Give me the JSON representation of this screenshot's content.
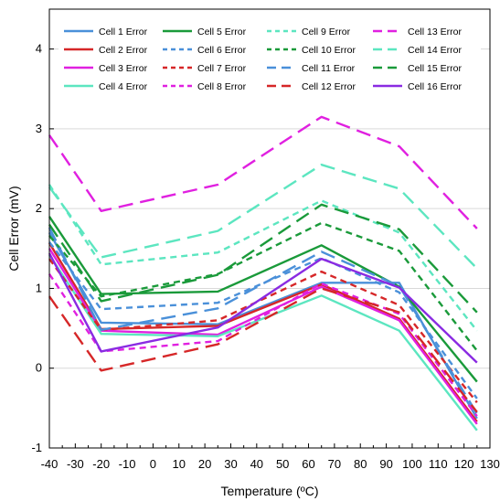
{
  "chart_data": {
    "type": "line",
    "xlabel": "Temperature (ºC)",
    "ylabel": "Cell Error (mV)",
    "xlim": [
      -40,
      130
    ],
    "ylim": [
      -1,
      4.5
    ],
    "x_ticks": [
      -40,
      -30,
      -20,
      -10,
      0,
      10,
      20,
      30,
      40,
      50,
      60,
      70,
      80,
      90,
      100,
      110,
      120,
      130
    ],
    "y_ticks": [
      -1,
      0,
      1,
      2,
      3,
      4
    ],
    "grid": "horizontal",
    "legend_position": "top",
    "x": [
      -40,
      -20,
      25,
      65,
      95,
      125
    ],
    "series": [
      {
        "name": "Cell 1 Error",
        "color": "#4a90d9",
        "dash": "solid",
        "values": [
          1.7,
          0.57,
          0.55,
          1.07,
          1.07,
          -0.63
        ]
      },
      {
        "name": "Cell 2 Error",
        "color": "#d62728",
        "dash": "solid",
        "values": [
          1.57,
          0.49,
          0.53,
          1.05,
          0.62,
          -0.67
        ]
      },
      {
        "name": "Cell 3 Error",
        "color": "#e020e0",
        "dash": "solid",
        "values": [
          1.5,
          0.47,
          0.42,
          1.02,
          0.6,
          -0.7
        ]
      },
      {
        "name": "Cell 4 Error",
        "color": "#5ce6c0",
        "dash": "solid",
        "values": [
          1.42,
          0.43,
          0.4,
          0.91,
          0.47,
          -0.78
        ]
      },
      {
        "name": "Cell 5 Error",
        "color": "#1a9a3a",
        "dash": "solid",
        "values": [
          1.9,
          0.93,
          0.96,
          1.54,
          1.02,
          -0.17
        ]
      },
      {
        "name": "Cell 6 Error",
        "color": "#4a90d9",
        "dash": "dash",
        "values": [
          1.58,
          0.74,
          0.82,
          1.38,
          0.95,
          -0.38
        ]
      },
      {
        "name": "Cell 7 Error",
        "color": "#d62728",
        "dash": "dash",
        "values": [
          1.37,
          0.48,
          0.6,
          1.21,
          0.79,
          -0.43
        ]
      },
      {
        "name": "Cell 8 Error",
        "color": "#e020e0",
        "dash": "dash",
        "values": [
          1.18,
          0.21,
          0.34,
          1.06,
          0.68,
          -0.6
        ]
      },
      {
        "name": "Cell 9 Error",
        "color": "#5ce6c0",
        "dash": "dash",
        "values": [
          2.3,
          1.3,
          1.45,
          2.1,
          1.7,
          0.47
        ]
      },
      {
        "name": "Cell 10 Error",
        "color": "#1a9a3a",
        "dash": "dash",
        "values": [
          1.66,
          0.9,
          1.18,
          1.82,
          1.47,
          0.22
        ]
      },
      {
        "name": "Cell 11 Error",
        "color": "#4a90d9",
        "dash": "longdash",
        "values": [
          1.76,
          0.48,
          0.75,
          1.46,
          1.03,
          -0.57
        ]
      },
      {
        "name": "Cell 12 Error",
        "color": "#d62728",
        "dash": "longdash",
        "values": [
          0.9,
          -0.03,
          0.3,
          1.0,
          0.7,
          -0.55
        ]
      },
      {
        "name": "Cell 13 Error",
        "color": "#e020e0",
        "dash": "longdash",
        "values": [
          2.92,
          1.97,
          2.3,
          3.15,
          2.78,
          1.75
        ]
      },
      {
        "name": "Cell 14 Error",
        "color": "#5ce6c0",
        "dash": "longdash",
        "values": [
          2.27,
          1.39,
          1.72,
          2.55,
          2.25,
          1.25
        ]
      },
      {
        "name": "Cell 15 Error",
        "color": "#1a9a3a",
        "dash": "longdash",
        "values": [
          1.8,
          0.84,
          1.17,
          2.05,
          1.74,
          0.7
        ]
      },
      {
        "name": "Cell 16 Error",
        "color": "#8a2be2",
        "dash": "solid",
        "values": [
          1.44,
          0.21,
          0.51,
          1.37,
          1.01,
          0.07
        ]
      }
    ]
  }
}
